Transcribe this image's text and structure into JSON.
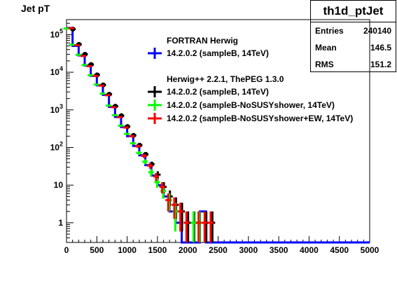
{
  "canvas": {
    "title": "Jet pT",
    "stats": {
      "name": "th1d_ptJet",
      "rows": [
        {
          "label": "Entries",
          "value": "240140"
        },
        {
          "label": "Mean",
          "value": "146.5"
        },
        {
          "label": "RMS",
          "value": "151.2"
        }
      ]
    }
  },
  "chart_data": {
    "type": "line",
    "title": "Jet pT",
    "xlabel": "",
    "ylabel": "",
    "xlim": [
      0,
      5000
    ],
    "ylim": [
      0.3,
      250000
    ],
    "y_scale": "log",
    "grid": false,
    "legend_position": "top-right",
    "x_ticks": [
      0,
      500,
      1000,
      1500,
      2000,
      2500,
      3000,
      3500,
      4000,
      4500,
      5000
    ],
    "x_tick_labels": [
      "0",
      "500",
      "1000",
      "1500",
      "2000",
      "2500",
      "3000",
      "3500",
      "4000",
      "4500",
      "5000"
    ],
    "y_ticks": [
      1,
      10,
      100,
      1000,
      10000,
      100000
    ],
    "y_tick_labels": [
      "1",
      "10",
      "10^2",
      "10^3",
      "10^4",
      "10^5"
    ],
    "legend_groups": [
      {
        "header": "FORTRAN Herwig",
        "entries": [
          0
        ]
      },
      {
        "header": "Herwig++ 2.2.1, ThePEG 1.3.0",
        "entries": [
          1,
          2,
          3
        ]
      }
    ],
    "series": [
      {
        "name": "14.2.0.2 (sampleB, 14TeV)",
        "color": "#0000ff",
        "style": "histogram",
        "x": [
          50,
          150,
          250,
          350,
          450,
          550,
          650,
          750,
          850,
          950,
          1050,
          1150,
          1250,
          1350,
          1450,
          1550,
          1650,
          1750,
          1850,
          1950,
          2050,
          2150,
          2250,
          2350
        ],
        "y": [
          150000,
          50000,
          28000,
          15000,
          8000,
          4500,
          2500,
          1200,
          650,
          350,
          200,
          110,
          62,
          34,
          18,
          10,
          5,
          2,
          1,
          0,
          0,
          0,
          2,
          0
        ]
      },
      {
        "name": "14.2.0.2 (sampleB, 14TeV)",
        "color": "#000000",
        "style": "points",
        "x": [
          50,
          150,
          250,
          350,
          450,
          550,
          650,
          750,
          850,
          950,
          1050,
          1150,
          1250,
          1350,
          1450,
          1550,
          1650,
          1750,
          1850,
          1950,
          2050,
          2150,
          2250,
          2350
        ],
        "y": [
          140000,
          55000,
          30000,
          16000,
          8500,
          4600,
          2600,
          1250,
          700,
          360,
          210,
          115,
          66,
          36,
          19,
          9,
          5,
          3,
          2,
          1,
          1,
          0,
          1,
          1
        ]
      },
      {
        "name": "14.2.0.2 (sampleB-NoSUSYshower, 14TeV)",
        "color": "#00ff00",
        "style": "points",
        "x": [
          50,
          150,
          250,
          350,
          450,
          550,
          650,
          750,
          850,
          950,
          1050,
          1150,
          1250,
          1350,
          1450,
          1550,
          1650,
          1750,
          1850,
          1950,
          2050,
          2150,
          2250,
          2350
        ],
        "y": [
          145000,
          54000,
          29000,
          15500,
          8300,
          4700,
          2700,
          1300,
          720,
          380,
          230,
          130,
          72,
          42,
          22,
          12,
          7,
          4,
          2,
          0,
          0,
          1,
          1,
          0
        ]
      },
      {
        "name": "14.2.0.2 (sampleB-NoSUSYshower+EW, 14TeV)",
        "color": "#ff0000",
        "style": "points",
        "x": [
          50,
          150,
          250,
          350,
          450,
          550,
          650,
          750,
          850,
          950,
          1050,
          1150,
          1250,
          1350,
          1450,
          1550,
          1650,
          1750,
          1850,
          1950,
          2050,
          2150,
          2250,
          2350
        ],
        "y": [
          148000,
          52000,
          27000,
          14500,
          8000,
          4400,
          2450,
          1180,
          640,
          340,
          200,
          108,
          60,
          33,
          17,
          9,
          4,
          3,
          2,
          1,
          0,
          1,
          1,
          1
        ]
      }
    ]
  }
}
